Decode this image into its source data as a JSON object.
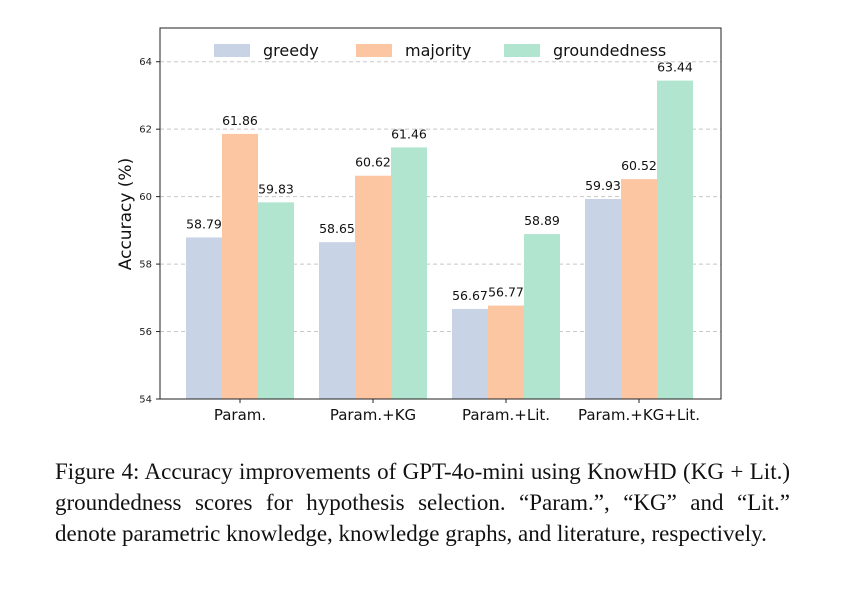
{
  "chart_data": {
    "type": "bar",
    "categories": [
      "Param.",
      "Param.+KG",
      "Param.+Lit.",
      "Param.+KG+Lit."
    ],
    "series": [
      {
        "name": "greedy",
        "color": "#c8d3e6",
        "values": [
          58.79,
          58.65,
          56.67,
          59.93
        ]
      },
      {
        "name": "majority",
        "color": "#fdc6a3",
        "values": [
          61.86,
          60.62,
          56.77,
          60.52
        ]
      },
      {
        "name": "groundedness",
        "color": "#b2e5cf",
        "values": [
          59.83,
          61.46,
          58.89,
          63.44
        ]
      }
    ],
    "value_labels": [
      [
        "58.79",
        "58.65",
        "56.67",
        "59.93"
      ],
      [
        "61.86",
        "60.62",
        "56.77",
        "60.52"
      ],
      [
        "59.83",
        "61.46",
        "58.89",
        "63.44"
      ]
    ],
    "ylabel": "Accuracy (%)",
    "ylim": [
      54,
      65
    ],
    "yticks": [
      54,
      56,
      58,
      60,
      62,
      64
    ],
    "ytick_labels": [
      "54",
      "56",
      "58",
      "60",
      "62",
      "64"
    ],
    "grid": "horizontal dashed",
    "legend": "top"
  },
  "caption": "Figure 4: Accuracy improvements of GPT-4o-mini using KnowHD (KG + Lit.) groundedness scores for hypothesis selection. “Param.”, “KG” and “Lit.” denote parametric knowledge, knowledge graphs, and literature, respectively."
}
